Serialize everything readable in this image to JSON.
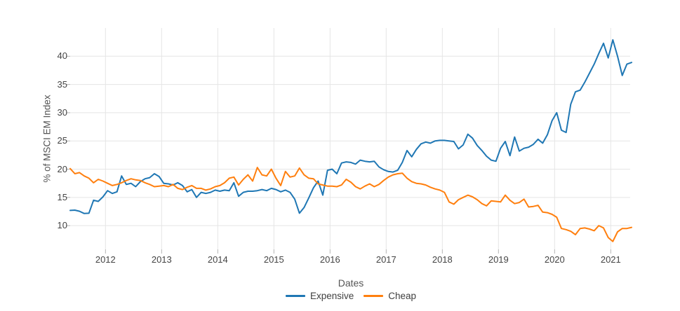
{
  "chart_data": {
    "type": "line",
    "title": "",
    "xlabel": "Dates",
    "ylabel": "% of MSCI EM Index",
    "x_tick_labels": [
      "2012",
      "2013",
      "2014",
      "2015",
      "2016",
      "2017",
      "2018",
      "2019",
      "2020",
      "2021"
    ],
    "x_tick_years": [
      2012,
      2013,
      2014,
      2015,
      2016,
      2017,
      2018,
      2019,
      2020,
      2021
    ],
    "y_ticks": [
      10,
      15,
      20,
      25,
      30,
      35,
      40
    ],
    "x_range_decimal_years": [
      2011.371,
      2021.371
    ],
    "y_range": [
      5.8,
      45.0
    ],
    "grid": true,
    "legend_position": "bottom",
    "sampling": "monthly",
    "start_year_decimal": 2011.371,
    "step_years": 0.083333,
    "background_color": "#ffffff",
    "gridline_color": "#e5e5e5",
    "tick_mark_color": "#b5b5b5",
    "series": [
      {
        "name": "Expensive",
        "color": "#1f77b4",
        "values": [
          12.7,
          12.75,
          12.55,
          12.15,
          12.2,
          14.5,
          14.3,
          15.1,
          16.2,
          15.7,
          16.0,
          18.8,
          17.3,
          17.5,
          16.9,
          17.8,
          18.3,
          18.5,
          19.2,
          18.7,
          17.5,
          17.4,
          17.2,
          17.6,
          17.1,
          16.0,
          16.4,
          15.0,
          15.9,
          15.7,
          15.9,
          16.3,
          16.1,
          16.3,
          16.2,
          17.6,
          15.2,
          15.9,
          16.1,
          16.1,
          16.2,
          16.4,
          16.2,
          16.6,
          16.4,
          16.0,
          16.3,
          15.9,
          14.7,
          12.2,
          13.2,
          14.9,
          16.7,
          17.9,
          15.4,
          19.8,
          20.0,
          19.2,
          21.1,
          21.3,
          21.2,
          20.9,
          21.6,
          21.4,
          21.3,
          21.4,
          20.4,
          19.9,
          19.6,
          19.5,
          19.8,
          21.2,
          23.3,
          22.2,
          23.5,
          24.5,
          24.8,
          24.6,
          25.0,
          25.1,
          25.1,
          25.0,
          24.9,
          23.6,
          24.3,
          26.2,
          25.5,
          24.2,
          23.3,
          22.3,
          21.6,
          21.4,
          23.7,
          24.9,
          22.4,
          25.7,
          23.2,
          23.7,
          23.9,
          24.4,
          25.3,
          24.6,
          26.1,
          28.6,
          30.0,
          26.9,
          26.5,
          31.5,
          33.7,
          34.0,
          35.4,
          37.0,
          38.6,
          40.5,
          42.3,
          39.7,
          42.9,
          40.0,
          36.6,
          38.6,
          38.9
        ]
      },
      {
        "name": "Cheap",
        "color": "#ff7f0e",
        "values": [
          20.1,
          19.2,
          19.4,
          18.8,
          18.4,
          17.6,
          18.2,
          17.9,
          17.5,
          17.1,
          17.3,
          17.6,
          18.0,
          18.3,
          18.1,
          18.0,
          17.6,
          17.3,
          16.9,
          17.0,
          17.1,
          16.9,
          17.3,
          16.6,
          16.4,
          16.8,
          17.1,
          16.6,
          16.6,
          16.3,
          16.5,
          16.9,
          17.1,
          17.6,
          18.4,
          18.6,
          17.2,
          18.2,
          19.0,
          17.9,
          20.3,
          19.0,
          18.8,
          20.0,
          18.4,
          17.1,
          19.6,
          18.6,
          18.8,
          20.2,
          19.0,
          18.4,
          18.3,
          17.4,
          17.2,
          17.0,
          17.0,
          16.9,
          17.2,
          18.2,
          17.7,
          16.9,
          16.5,
          17.0,
          17.4,
          16.9,
          17.3,
          18.0,
          18.6,
          19.0,
          19.2,
          19.3,
          18.4,
          17.8,
          17.5,
          17.4,
          17.2,
          16.8,
          16.5,
          16.3,
          15.9,
          14.2,
          13.8,
          14.6,
          15.0,
          15.4,
          15.1,
          14.6,
          13.9,
          13.5,
          14.4,
          14.3,
          14.2,
          15.4,
          14.5,
          13.9,
          14.1,
          14.7,
          13.3,
          13.4,
          13.6,
          12.4,
          12.3,
          12.0,
          11.5,
          9.5,
          9.3,
          9.0,
          8.4,
          9.5,
          9.6,
          9.4,
          9.1,
          10.0,
          9.6,
          7.9,
          7.2,
          8.9,
          9.5,
          9.5,
          9.7
        ]
      }
    ]
  },
  "axes": {
    "x_title": "Dates",
    "y_title": "% of MSCI EM Index"
  },
  "legend": {
    "items": [
      {
        "label": "Expensive",
        "color": "#1f77b4"
      },
      {
        "label": "Cheap",
        "color": "#ff7f0e"
      }
    ]
  }
}
